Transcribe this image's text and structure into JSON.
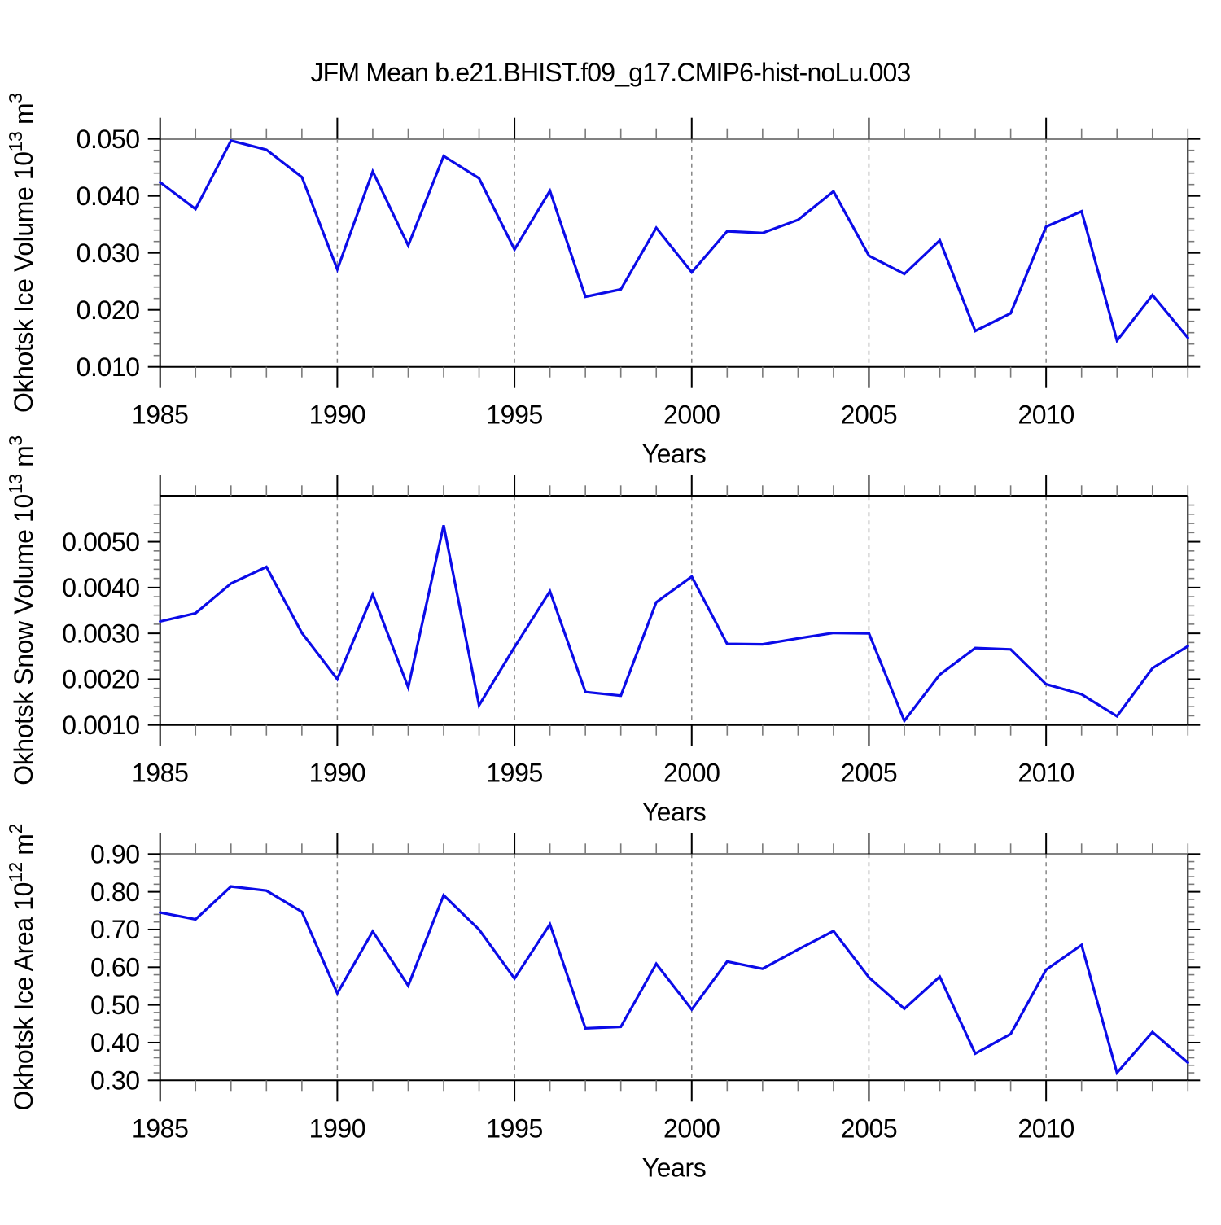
{
  "title": "JFM Mean b.e21.BHIST.f09_g17.CMIP6-hist-noLu.003",
  "line_color": "#0b0be8",
  "grid_color": "#868686",
  "axis_color": "#000000",
  "minor_tick_color": "#7a7a7a",
  "chart_data": [
    {
      "type": "line",
      "name": "okhotsk-ice-volume",
      "ylabel": "Okhotsk Ice Volume 10^13 m^3",
      "xlabel": "Years",
      "x": [
        1985,
        1986,
        1987,
        1988,
        1989,
        1990,
        1991,
        1992,
        1993,
        1994,
        1995,
        1996,
        1997,
        1998,
        1999,
        2000,
        2001,
        2002,
        2003,
        2004,
        2005,
        2006,
        2007,
        2008,
        2009,
        2010,
        2011,
        2012,
        2013,
        2014
      ],
      "values": [
        0.0424,
        0.0377,
        0.0497,
        0.0481,
        0.0433,
        0.0271,
        0.0443,
        0.0313,
        0.047,
        0.0431,
        0.0306,
        0.0409,
        0.0223,
        0.0236,
        0.0344,
        0.0266,
        0.0338,
        0.0335,
        0.0358,
        0.0408,
        0.0295,
        0.0263,
        0.0322,
        0.0163,
        0.0194,
        0.0346,
        0.0373,
        0.0146,
        0.0226,
        0.0151
      ],
      "ylim": [
        0.01,
        0.05
      ],
      "yticks": [
        0.01,
        0.02,
        0.03,
        0.04,
        0.05
      ],
      "yminor_step": 0.002,
      "ylabel_decimals": 3,
      "xlim": [
        1985,
        2014
      ],
      "xtick_labels": [
        1985,
        1990,
        1995,
        2000,
        2005,
        2010
      ],
      "gridline_years": [
        1990,
        1995,
        2000,
        2005,
        2010
      ],
      "grid": "vertical-dashed",
      "legend": "none",
      "top_border_color": "#808080"
    },
    {
      "type": "line",
      "name": "okhotsk-snow-volume",
      "ylabel": "Okhotsk Snow Volume 10^13 m^3",
      "xlabel": "Years",
      "x": [
        1985,
        1986,
        1987,
        1988,
        1989,
        1990,
        1991,
        1992,
        1993,
        1994,
        1995,
        1996,
        1997,
        1998,
        1999,
        2000,
        2001,
        2002,
        2003,
        2004,
        2005,
        2006,
        2007,
        2008,
        2009,
        2010,
        2011,
        2012,
        2013,
        2014
      ],
      "values": [
        0.00326,
        0.00344,
        0.00409,
        0.00445,
        0.00301,
        0.002,
        0.00385,
        0.00182,
        0.00536,
        0.00143,
        0.0027,
        0.00392,
        0.00172,
        0.00164,
        0.00368,
        0.00424,
        0.00277,
        0.00276,
        0.00289,
        0.00301,
        0.003,
        0.00109,
        0.0021,
        0.00268,
        0.00265,
        0.00189,
        0.00167,
        0.00119,
        0.00224,
        0.00272
      ],
      "ylim": [
        0.001,
        0.006
      ],
      "yticks": [
        0.001,
        0.002,
        0.003,
        0.004,
        0.005
      ],
      "yminor_step": 0.0002,
      "ylabel_decimals": 4,
      "xlim": [
        1985,
        2014
      ],
      "xtick_labels": [
        1985,
        1990,
        1995,
        2000,
        2005,
        2010
      ],
      "gridline_years": [
        1990,
        1995,
        2000,
        2005,
        2010
      ],
      "grid": "vertical-dashed",
      "legend": "none",
      "top_border_color": "#000000"
    },
    {
      "type": "line",
      "name": "okhotsk-ice-area",
      "ylabel": "Okhotsk Ice Area 10^12 m^2",
      "xlabel": "Years",
      "x": [
        1985,
        1986,
        1987,
        1988,
        1989,
        1990,
        1991,
        1992,
        1993,
        1994,
        1995,
        1996,
        1997,
        1998,
        1999,
        2000,
        2001,
        2002,
        2003,
        2004,
        2005,
        2006,
        2007,
        2008,
        2009,
        2010,
        2011,
        2012,
        2013,
        2014
      ],
      "values": [
        0.745,
        0.727,
        0.814,
        0.803,
        0.747,
        0.531,
        0.695,
        0.551,
        0.791,
        0.7,
        0.57,
        0.714,
        0.438,
        0.442,
        0.609,
        0.488,
        0.615,
        0.596,
        0.647,
        0.696,
        0.573,
        0.49,
        0.575,
        0.371,
        0.423,
        0.593,
        0.659,
        0.32,
        0.428,
        0.347
      ],
      "ylim": [
        0.3,
        0.9
      ],
      "yticks": [
        0.3,
        0.4,
        0.5,
        0.6,
        0.7,
        0.8,
        0.9
      ],
      "yminor_step": 0.02,
      "ylabel_decimals": 2,
      "xlim": [
        1985,
        2014
      ],
      "xtick_labels": [
        1985,
        1990,
        1995,
        2000,
        2005,
        2010
      ],
      "gridline_years": [
        1990,
        1995,
        2000,
        2005,
        2010
      ],
      "grid": "vertical-dashed",
      "legend": "none",
      "top_border_color": "#808080"
    }
  ]
}
